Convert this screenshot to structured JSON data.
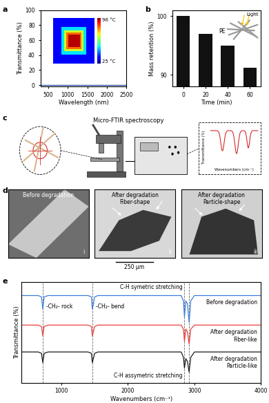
{
  "panel_labels": [
    "a",
    "b",
    "c",
    "d",
    "e"
  ],
  "chart_data": [
    {
      "type": "line",
      "x": [
        300,
        2500
      ],
      "values": [
        0.3,
        0.3
      ],
      "color": "#2b4fa8",
      "xlabel": "Wavelength (nm)",
      "ylabel": "Transmittance (%)",
      "xlim": [
        300,
        2500
      ],
      "ylim": [
        -2,
        100
      ],
      "xticks": [
        500,
        1000,
        1500,
        2000,
        2500
      ],
      "yticks": [
        0,
        20,
        40,
        60,
        80,
        100
      ],
      "annotations": [
        "96 °C",
        "25 °C"
      ]
    },
    {
      "type": "bar",
      "x": [
        0,
        20,
        40,
        60
      ],
      "values": [
        100,
        97,
        95,
        91.2
      ],
      "color": "#111111",
      "xlabel": "Time (min)",
      "ylabel": "Mass retention (%)",
      "xlim": [
        -10,
        70
      ],
      "ylim": [
        88,
        101
      ],
      "xticks": [
        0,
        20,
        40,
        60
      ],
      "yticks": [
        90,
        100
      ],
      "annotations": [
        "Light",
        "PE"
      ]
    },
    {
      "type": "line",
      "x": [
        400,
        650,
        700,
        720,
        740,
        800,
        1400,
        1450,
        1465,
        1475,
        1500,
        1550,
        2800,
        2835,
        2850,
        2870,
        2895,
        2920,
        2945,
        3000,
        4000
      ],
      "series": [
        {
          "name": "Before degradation",
          "color": "#3b7dd8",
          "values": [
            90,
            90,
            89,
            80,
            89,
            90,
            90,
            89,
            80,
            82,
            89,
            90,
            90,
            86,
            74,
            86,
            84,
            70,
            86,
            90,
            90
          ]
        },
        {
          "name": "After degradation\nFiber-like",
          "color": "#e8413c",
          "values": [
            68,
            68,
            67,
            60,
            67,
            68,
            68,
            67,
            60,
            62,
            67,
            68,
            68,
            65,
            56,
            65,
            63,
            54,
            65,
            68,
            68
          ]
        },
        {
          "name": "After degradation\nParticle-like",
          "color": "#1a1a1a",
          "values": [
            48,
            48,
            47,
            40,
            47,
            48,
            48,
            47,
            40,
            42,
            47,
            48,
            48,
            44,
            36,
            43,
            41,
            33,
            44,
            48,
            48
          ]
        }
      ],
      "xlabel": "Wavenumbers (cm⁻¹)",
      "ylabel": "Transmittance (%)",
      "xlim": [
        400,
        4000
      ],
      "ylim": [
        25,
        100
      ],
      "xticks": [
        1000,
        2000,
        3000,
        4000
      ],
      "tick_labels": "x",
      "reference_lines": [
        720,
        1465,
        2850,
        2920
      ],
      "annotations": [
        "C-H symetric stretching",
        "-CH₂- rock",
        "-CH₂- bend",
        "C-H assymetric stretching"
      ]
    }
  ],
  "diagram": {
    "title": "Micro-FTIR spectroscopy",
    "inset_ylabel": "Transmittance (%)",
    "inset_xlabel": "Wavenumbers (cm⁻¹)"
  },
  "micrographs": {
    "images": [
      {
        "label": "Before degradation",
        "numeral": "i"
      },
      {
        "label": "After degradation\nFiber-shape",
        "numeral": "ii"
      },
      {
        "label": "After degradation\nParticle-shape",
        "numeral": "iii"
      }
    ],
    "scale_bar": "250 μm"
  }
}
